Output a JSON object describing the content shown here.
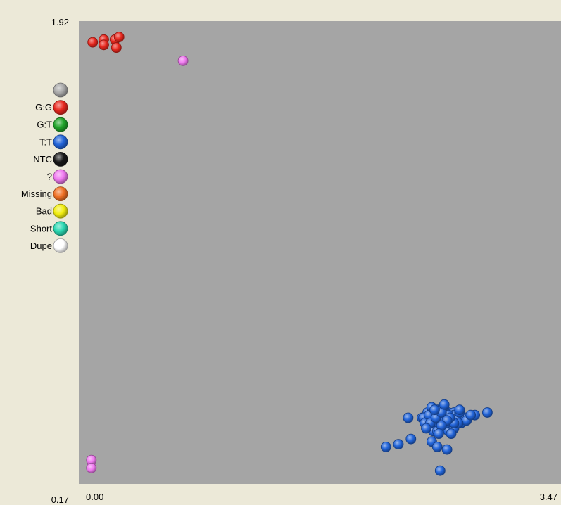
{
  "chart_data": {
    "type": "scatter",
    "title": "",
    "xlabel": "",
    "ylabel": "",
    "xlim": [
      0.0,
      3.47
    ],
    "ylim": [
      0.17,
      1.92
    ],
    "x_tick_labels": [
      "0.00",
      "3.47"
    ],
    "y_tick_labels": [
      "1.92",
      "0.17"
    ],
    "grid": false,
    "background": "#a5a5a5",
    "legend_position": "left-top",
    "legend": [
      {
        "label": "",
        "color": "#a8a8a8"
      },
      {
        "label": "G:G",
        "color": "#e8281e"
      },
      {
        "label": "G:T",
        "color": "#22a42a"
      },
      {
        "label": "T:T",
        "color": "#2264d8"
      },
      {
        "label": "NTC",
        "color": "#181818"
      },
      {
        "label": "?",
        "color": "#f07af0"
      },
      {
        "label": "Missing",
        "color": "#f07024"
      },
      {
        "label": "Bad",
        "color": "#f2ee10"
      },
      {
        "label": "Short",
        "color": "#2ad8b2"
      },
      {
        "label": "Dupe",
        "color": "#ffffff"
      }
    ],
    "series": [
      {
        "name": "G:G",
        "color": "#e8281e",
        "points": [
          [
            0.1,
            1.84
          ],
          [
            0.18,
            1.85
          ],
          [
            0.18,
            1.83
          ],
          [
            0.26,
            1.85
          ],
          [
            0.29,
            1.86
          ],
          [
            0.27,
            1.82
          ]
        ]
      },
      {
        "name": "?",
        "color": "#f07af0",
        "points": [
          [
            0.75,
            1.77
          ],
          [
            0.09,
            0.26
          ],
          [
            0.09,
            0.23
          ]
        ]
      },
      {
        "name": "T:T",
        "color": "#2264d8",
        "points": [
          [
            2.54,
            0.33
          ],
          [
            2.65,
            0.3
          ],
          [
            2.6,
            0.22
          ],
          [
            2.58,
            0.31
          ],
          [
            2.39,
            0.34
          ],
          [
            2.3,
            0.32
          ],
          [
            2.21,
            0.31
          ],
          [
            2.54,
            0.45
          ],
          [
            2.62,
            0.44
          ],
          [
            2.6,
            0.43
          ],
          [
            2.58,
            0.44
          ],
          [
            2.66,
            0.44
          ],
          [
            2.7,
            0.44
          ],
          [
            2.72,
            0.43
          ],
          [
            2.5,
            0.42
          ],
          [
            2.7,
            0.43
          ],
          [
            2.54,
            0.41
          ],
          [
            2.58,
            0.41
          ],
          [
            2.64,
            0.42
          ],
          [
            2.68,
            0.41
          ],
          [
            2.73,
            0.42
          ],
          [
            2.56,
            0.4
          ],
          [
            2.62,
            0.4
          ],
          [
            2.52,
            0.39
          ],
          [
            2.67,
            0.39
          ],
          [
            2.69,
            0.39
          ],
          [
            2.6,
            0.38
          ],
          [
            2.64,
            0.38
          ],
          [
            2.55,
            0.37
          ],
          [
            2.58,
            0.37
          ],
          [
            2.66,
            0.37
          ],
          [
            2.75,
            0.4
          ],
          [
            2.78,
            0.42
          ],
          [
            2.79,
            0.41
          ],
          [
            2.51,
            0.44
          ],
          [
            2.58,
            0.45
          ],
          [
            2.63,
            0.45
          ],
          [
            2.74,
            0.44
          ],
          [
            2.47,
            0.42
          ],
          [
            2.48,
            0.42
          ],
          [
            2.56,
            0.43
          ],
          [
            2.61,
            0.42
          ],
          [
            2.66,
            0.43
          ],
          [
            2.49,
            0.4
          ],
          [
            2.62,
            0.41
          ],
          [
            2.65,
            0.4
          ],
          [
            2.7,
            0.38
          ],
          [
            2.73,
            0.4
          ],
          [
            2.52,
            0.43
          ],
          [
            2.7,
            0.4
          ],
          [
            2.53,
            0.4
          ],
          [
            2.6,
            0.41
          ],
          [
            2.54,
            0.46
          ],
          [
            2.62,
            0.46
          ],
          [
            2.57,
            0.42
          ],
          [
            2.67,
            0.42
          ],
          [
            2.61,
            0.44
          ],
          [
            2.65,
            0.41
          ],
          [
            2.56,
            0.45
          ],
          [
            2.61,
            0.39
          ],
          [
            2.63,
            0.47
          ],
          [
            2.74,
            0.45
          ],
          [
            2.85,
            0.43
          ],
          [
            2.94,
            0.44
          ],
          [
            2.82,
            0.43
          ],
          [
            2.5,
            0.38
          ],
          [
            2.59,
            0.36
          ],
          [
            2.68,
            0.36
          ],
          [
            2.37,
            0.42
          ]
        ]
      }
    ]
  }
}
